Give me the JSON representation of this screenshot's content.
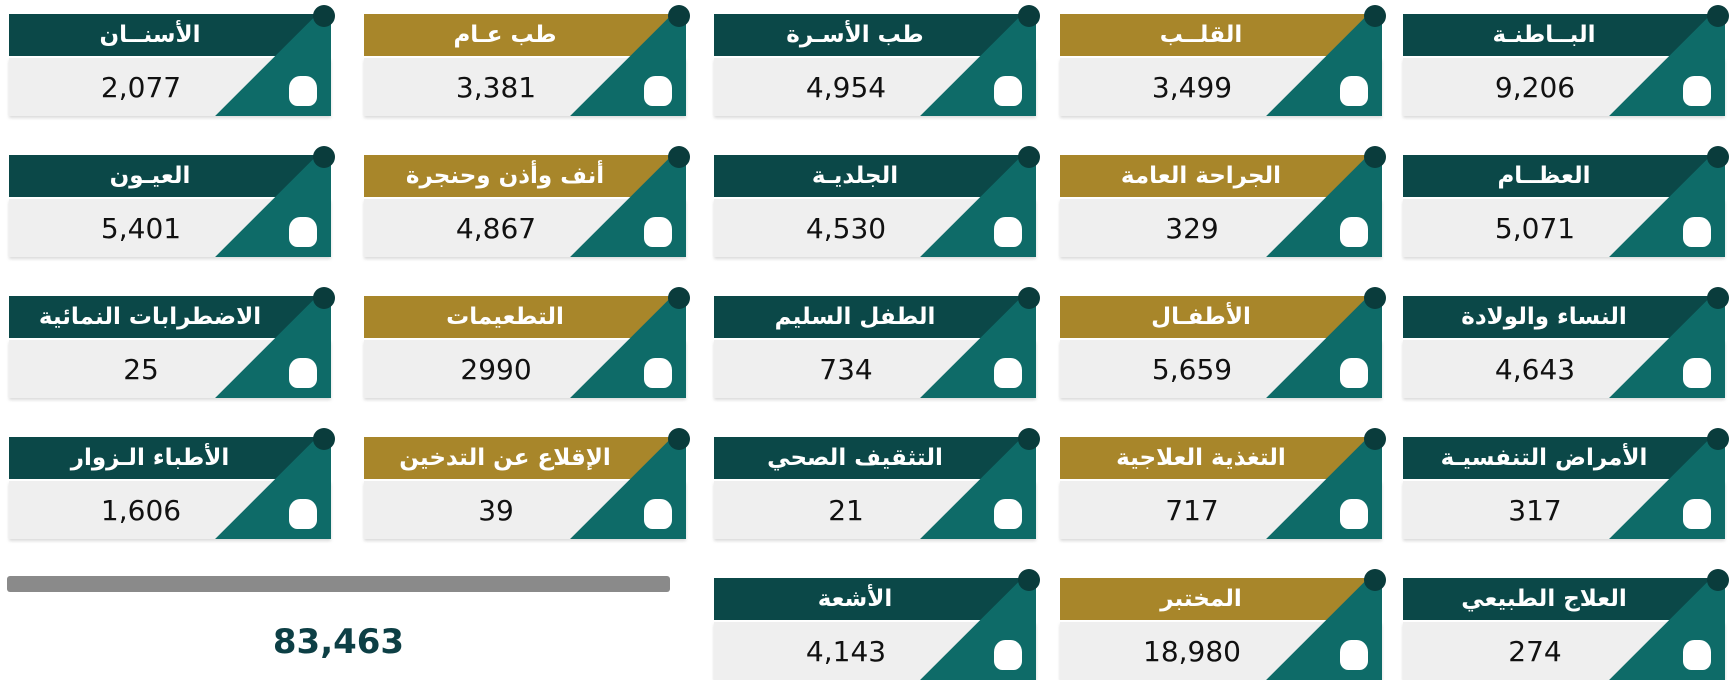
{
  "tiles": [
    {
      "title": "البــاطنـة",
      "value": "9,206"
    },
    {
      "title": "القلــب",
      "value": "3,499"
    },
    {
      "title": "طب الأسـرة",
      "value": "4,954"
    },
    {
      "title": "طب عـام",
      "value": "3,381"
    },
    {
      "title": "الأسنــان",
      "value": "2,077"
    },
    {
      "title": "العظــام",
      "value": "5,071"
    },
    {
      "title": "الجراحة العامة",
      "value": "329"
    },
    {
      "title": "الجلديـة",
      "value": "4,530"
    },
    {
      "title": "أنف وأذن وحنجرة",
      "value": "4,867"
    },
    {
      "title": "العيـون",
      "value": "5,401"
    },
    {
      "title": "النساء والولادة",
      "value": "4,643"
    },
    {
      "title": "الأطفـال",
      "value": "5,659"
    },
    {
      "title": "الطفل السليم",
      "value": "734"
    },
    {
      "title": "التطعيمات",
      "value": "2990"
    },
    {
      "title": "الاضطرابات النمائية",
      "value": "25"
    },
    {
      "title": "الأمراض التنفسيـة",
      "value": "317"
    },
    {
      "title": "التغذية العلاجية",
      "value": "717"
    },
    {
      "title": "التثقيف الصحي",
      "value": "21"
    },
    {
      "title": "الإقلاع عن التدخين",
      "value": "39"
    },
    {
      "title": "الأطباء الـزوار",
      "value": "1,606"
    },
    {
      "title": "العلاج الطبيعي",
      "value": "274"
    },
    {
      "title": "المختبر",
      "value": "18,980"
    },
    {
      "title": "الأشعة",
      "value": "4,143"
    }
  ],
  "total": "83,463"
}
